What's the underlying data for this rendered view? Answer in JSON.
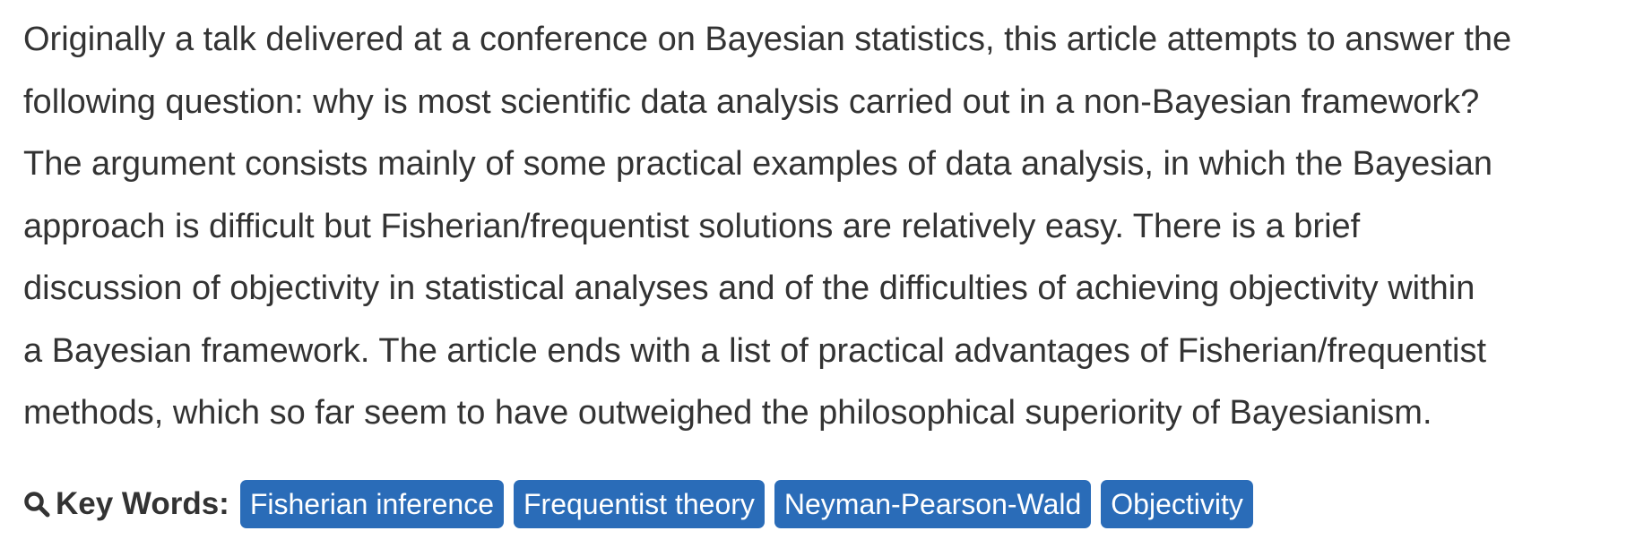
{
  "abstract": {
    "lines": [
      "Originally a talk delivered at a conference on Bayesian statistics, this article attempts to answer the",
      "following question: why is most scientific data analysis carried out in a non-Bayesian framework?",
      "The argument consists mainly of some practical examples of data analysis, in which the Bayesian",
      "approach is difficult but Fisherian/frequentist solutions are relatively easy. There is a brief",
      "discussion of objectivity in statistical analyses and of the difficulties of achieving objectivity within",
      "a Bayesian framework. The article ends with a list of practical advantages of Fisherian/frequentist",
      "methods, which so far seem to have outweighed the philosophical superiority of Bayesianism."
    ]
  },
  "keywords": {
    "icon": "search-icon",
    "label": "Key Words:",
    "tag_color": "#2a6cb8",
    "tags": [
      "Fisherian inference",
      "Frequentist theory",
      "Neyman-Pearson-Wald",
      "Objectivity"
    ]
  }
}
